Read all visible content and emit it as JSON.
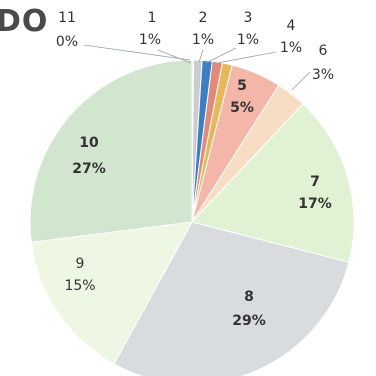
{
  "chart_data": {
    "type": "pie",
    "title": "DO",
    "categories": [
      "1",
      "2",
      "3",
      "4",
      "5",
      "6",
      "7",
      "8",
      "9",
      "10",
      "11"
    ],
    "values": [
      1,
      1,
      1,
      1,
      5,
      3,
      17,
      29,
      15,
      27,
      0
    ],
    "percent_labels": [
      "1%",
      "1%",
      "1%",
      "1%",
      "5%",
      "3%",
      "17%",
      "29%",
      "15%",
      "27%",
      "0%"
    ],
    "colors": [
      "#c9cdd2",
      "#3d7fc4",
      "#e08a7a",
      "#e7b75a",
      "#f3b6a8",
      "#f6ddc3",
      "#e1f2d4",
      "#d9dcdf",
      "#eef6e4",
      "#d2e6cf",
      "#e9ebee"
    ],
    "legend": "none"
  }
}
